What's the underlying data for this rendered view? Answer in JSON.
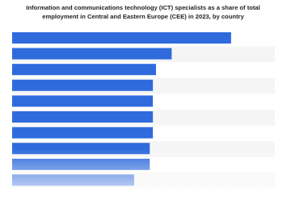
{
  "chart_data": {
    "type": "bar",
    "orientation": "horizontal",
    "title": "Information and communications technology (ICT) specialists as a share of total employment in Central and Eastern Europe (CEE) in 2023, by country",
    "categories": [
      null,
      null,
      null,
      null,
      null,
      null,
      null,
      null,
      null,
      null
    ],
    "values": [
      7.0,
      5.1,
      4.6,
      4.5,
      4.5,
      4.5,
      4.5,
      4.4,
      4.4,
      3.9
    ],
    "color": "#2f6bdc",
    "xlim": [
      0,
      8.4
    ]
  }
}
